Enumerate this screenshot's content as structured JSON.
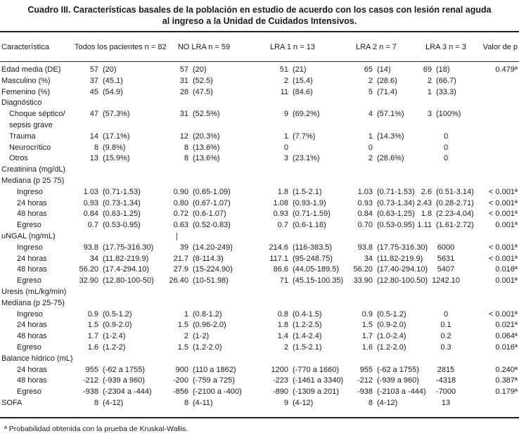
{
  "title": {
    "line1": "Cuadro III. Características basales de la población en estudio de acuerdo con los casos con lesión renal aguda",
    "line2": "al ingreso a la Unidad de Cuidados Intensivos."
  },
  "columns": [
    "Característica",
    "Todos los pacientes n = 82",
    "NO LRA n = 59",
    "LRA 1 n = 13",
    "LRA 2 n = 7",
    "LRA 3 n = 3",
    "Valor de p"
  ],
  "table": {
    "rows": [
      {
        "label": "Edad media (DE)",
        "ind": 0,
        "cells": [
          [
            "57",
            "(20)"
          ],
          [
            "57",
            "(20)"
          ],
          [
            "51",
            "(21)"
          ],
          [
            "65",
            "(14)"
          ],
          [
            "69",
            "(18)"
          ]
        ],
        "p": "0.479ª"
      },
      {
        "label": "Masculino (%)",
        "ind": 0,
        "cells": [
          [
            "37",
            "(45.1)"
          ],
          [
            "31",
            "(52.5)"
          ],
          [
            "2",
            "(15.4)"
          ],
          [
            "2",
            "(28.6)"
          ],
          [
            "2",
            "(66.7)"
          ]
        ],
        "p": ""
      },
      {
        "label": "Femenino (%)",
        "ind": 0,
        "cells": [
          [
            "45",
            "(54.9)"
          ],
          [
            "28",
            "(47.5)"
          ],
          [
            "11",
            "(84.6)"
          ],
          [
            "5",
            "(71.4)"
          ],
          [
            "1",
            "(33.3)"
          ]
        ],
        "p": ""
      },
      {
        "label": "Diagnóstico",
        "section": true
      },
      {
        "label": "Choque séptico/\nsepsis grave",
        "ind": 1,
        "cells": [
          [
            "47",
            "(57.3%)"
          ],
          [
            "31",
            "(52.5%)"
          ],
          [
            "9",
            "(69.2%)"
          ],
          [
            "4",
            "(57.1%)"
          ],
          [
            "3",
            "(100%)"
          ]
        ],
        "p": ""
      },
      {
        "label": "Trauma",
        "ind": 1,
        "cells": [
          [
            "14",
            "(17.1%)"
          ],
          [
            "12",
            "(20.3%)"
          ],
          [
            "1",
            "(7.7%)"
          ],
          [
            "1",
            "(14.3%)"
          ],
          [
            "0",
            ""
          ]
        ],
        "p": ""
      },
      {
        "label": "Neurocrítico",
        "ind": 1,
        "cells": [
          [
            "8",
            "(9.8%)"
          ],
          [
            "8",
            "(13.6%)"
          ],
          [
            "0",
            ""
          ],
          [
            "0",
            ""
          ],
          [
            "0",
            ""
          ]
        ],
        "p": ""
      },
      {
        "label": "Otros",
        "ind": 1,
        "cells": [
          [
            "13",
            "(15.9%)"
          ],
          [
            "8",
            "(13.6%)"
          ],
          [
            "3",
            "(23.1%)"
          ],
          [
            "2",
            "(28.6%)"
          ],
          [
            "0",
            ""
          ]
        ],
        "p": ""
      },
      {
        "label": "Creatinina (mg/dL)",
        "section": true
      },
      {
        "label": "Mediana (p 25 75)",
        "section": true
      },
      {
        "label": "Ingreso",
        "ind": 2,
        "cells": [
          [
            "1.03",
            "(0.71-1.53)"
          ],
          [
            "0.90",
            "(0.65-1.09)"
          ],
          [
            "1.8",
            "(1.5-2.1)"
          ],
          [
            "1.03",
            "(0.71-1.53)"
          ],
          [
            "2.6",
            "(0.51-3.14)"
          ]
        ],
        "p": "< 0.001ª"
      },
      {
        "label": "24 horas",
        "ind": 2,
        "cells": [
          [
            "0.93",
            "(0.73-1.34)"
          ],
          [
            "0.80",
            "(0.67-1.07)"
          ],
          [
            "1.08",
            "(0.93-1.9)"
          ],
          [
            "0.93",
            "(0.73-1.34)"
          ],
          [
            "2.43",
            "(0.28-2.71)"
          ]
        ],
        "p": "< 0.001ª"
      },
      {
        "label": "48 horas",
        "ind": 2,
        "cells": [
          [
            "0.84",
            "(0.63-1.25)"
          ],
          [
            "0.72",
            "(0.6-1.07)"
          ],
          [
            "0.93",
            "(0.71-1.59)"
          ],
          [
            "0.84",
            "(0.63-1.25)"
          ],
          [
            "1.8",
            "(2.23-4.04)"
          ]
        ],
        "p": "< 0.001ª"
      },
      {
        "label": "Egreso",
        "ind": 2,
        "cells": [
          [
            "0.7",
            "(0.53-0.95)"
          ],
          [
            "0.63",
            "(0.52-0.83)"
          ],
          [
            "0.7",
            "(0.6-1.16)"
          ],
          [
            "0.70",
            "(0.53-0.95)"
          ],
          [
            "1.11",
            "(1.61-2.72)"
          ]
        ],
        "p": "0.001ª"
      },
      {
        "label": "uNGAL (ng/mL)",
        "section": true,
        "artifact": "|"
      },
      {
        "label": "Ingreso",
        "ind": 2,
        "cells": [
          [
            "93.8",
            "(17.75-316.30)"
          ],
          [
            "39",
            "(14.20-249)"
          ],
          [
            "214.6",
            "(116-383.5)"
          ],
          [
            "93.8",
            "(17.75-316.30)"
          ],
          [
            "6000",
            ""
          ]
        ],
        "p": "< 0.001ª"
      },
      {
        "label": "24 horas",
        "ind": 2,
        "cells": [
          [
            "34",
            "(11.82-219.9)"
          ],
          [
            "21.7",
            "(8-114.3)"
          ],
          [
            "117.1",
            "(95-248.75)"
          ],
          [
            "34",
            "(11.82-219.9)"
          ],
          [
            "5631",
            ""
          ]
        ],
        "p": "< 0.001ª"
      },
      {
        "label": "48 horas",
        "ind": 2,
        "cells": [
          [
            "56.20",
            "(17.4-294.10)"
          ],
          [
            "27.9",
            "(15-224.90)"
          ],
          [
            "86.6",
            "(44.05-189.5)"
          ],
          [
            "56.20",
            "(17.40-294.10)"
          ],
          [
            "5407",
            ""
          ]
        ],
        "p": "0.016ª"
      },
      {
        "label": "Egreso",
        "ind": 2,
        "cells": [
          [
            "32.90",
            "(12.80-100-50)"
          ],
          [
            "26.40",
            "(10-51.98)"
          ],
          [
            "71",
            "(45.15-100.35)"
          ],
          [
            "33.90",
            "(12.80-100.50)"
          ],
          [
            "1242.10",
            ""
          ]
        ],
        "p": "0.001ª"
      },
      {
        "label": "Uresis (mL/kg/min)",
        "section": true
      },
      {
        "label": "Mediana (p 25-75)",
        "section": true
      },
      {
        "label": "Ingreso",
        "ind": 2,
        "cells": [
          [
            "0.9",
            "(0.5-1.2)"
          ],
          [
            "1",
            "(0.8-1.2)"
          ],
          [
            "0.8",
            "(0.4-1.5)"
          ],
          [
            "0.9",
            "(0.5-1.2)"
          ],
          [
            "0",
            ""
          ]
        ],
        "p": "< 0.001ª"
      },
      {
        "label": "24 horas",
        "ind": 2,
        "cells": [
          [
            "1.5",
            "(0.9-2.0)"
          ],
          [
            "1.5",
            "(0.96-2.0)"
          ],
          [
            "1.8",
            "(1.2-2.5)"
          ],
          [
            "1.5",
            "(0.9-2.0)"
          ],
          [
            "0.1",
            ""
          ]
        ],
        "p": "0.021ª"
      },
      {
        "label": "48 horas",
        "ind": 2,
        "cells": [
          [
            "1.7",
            "(1-2.4)"
          ],
          [
            "2",
            "(1-2)"
          ],
          [
            "1.4",
            "(1.4-2.4)"
          ],
          [
            "1.7",
            "(1.0-2.4)"
          ],
          [
            "0.2",
            ""
          ]
        ],
        "p": "0.064ª"
      },
      {
        "label": "Egreso",
        "ind": 2,
        "cells": [
          [
            "1.6",
            "(1.2-2)"
          ],
          [
            "1.5",
            "(1.2-2.0)"
          ],
          [
            "2",
            "(1.5-2.1)"
          ],
          [
            "1.6",
            "(1.2-2.0)"
          ],
          [
            "0.3",
            ""
          ]
        ],
        "p": "0.016ª"
      },
      {
        "label": "Balance hídrico (mL)",
        "section": true
      },
      {
        "label": "24 horas",
        "ind": 2,
        "cells": [
          [
            "955",
            "(-62 a 1755)"
          ],
          [
            "900",
            "(110 a 1862)"
          ],
          [
            "1200",
            "(-770 a 1660)"
          ],
          [
            "955",
            "(-62 a 1755)"
          ],
          [
            "2815",
            ""
          ]
        ],
        "p": "0.240ª"
      },
      {
        "label": "48 horas",
        "ind": 2,
        "cells": [
          [
            "-212",
            "(-939 a 960)"
          ],
          [
            "-200",
            "(-759 a 725)"
          ],
          [
            "-223",
            "(-1461 a 3340)"
          ],
          [
            "-212",
            "(-939 a 960)"
          ],
          [
            "-4318",
            ""
          ]
        ],
        "p": "0.387ª"
      },
      {
        "label": "Egreso",
        "ind": 2,
        "cells": [
          [
            "-938",
            "(-2304 a -444)"
          ],
          [
            "-856",
            "(-2100 a -400)"
          ],
          [
            "-890",
            "(-1309 a 201)"
          ],
          [
            "-938",
            "(-2103 a -444)"
          ],
          [
            "-7000",
            ""
          ]
        ],
        "p": "0.179ª"
      },
      {
        "label": "SOFA",
        "ind": 0,
        "cells": [
          [
            "8",
            "(4-12)"
          ],
          [
            "8",
            "(4-11)"
          ],
          [
            "9",
            "(4-12)"
          ],
          [
            "8",
            "(4-12)"
          ],
          [
            "13",
            ""
          ]
        ],
        "p": ""
      }
    ]
  },
  "footnote": "ª Probabilidad obtenida con la prueba de Kruskal-Wallis.",
  "colors": {
    "text": "#1a1a1a",
    "rule": "#242424",
    "background": "#ffffff"
  }
}
